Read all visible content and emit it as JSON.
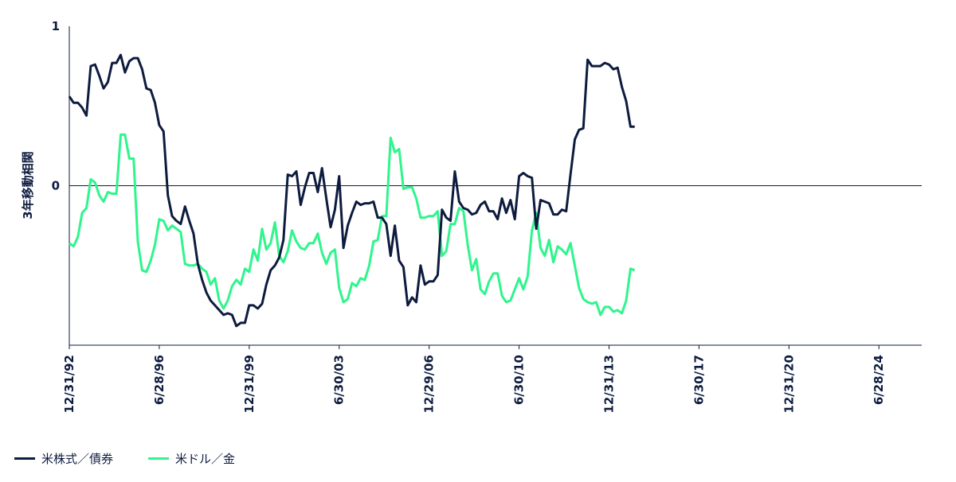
{
  "chart_data": {
    "type": "line",
    "ylabel": "3年移動相関",
    "ylim": [
      -1,
      1
    ],
    "yticks": [
      {
        "value": 1,
        "label": "1"
      },
      {
        "value": 0,
        "label": "0"
      }
    ],
    "xlim": [
      0,
      199
    ],
    "xticks": [
      {
        "index": 0,
        "label": "12/31/92"
      },
      {
        "index": 21,
        "label": "6/28/96"
      },
      {
        "index": 42,
        "label": "12/31/99"
      },
      {
        "index": 63,
        "label": "6/30/03"
      },
      {
        "index": 84,
        "label": "12/29/06"
      },
      {
        "index": 105,
        "label": "6/30/10"
      },
      {
        "index": 126,
        "label": "12/31/13"
      },
      {
        "index": 147,
        "label": "6/30/17"
      },
      {
        "index": 168,
        "label": "12/31/20"
      },
      {
        "index": 189,
        "label": "6/28/24"
      }
    ],
    "series": [
      {
        "name": "米株式／債券",
        "color": "#0d1b3e",
        "points": [
          [
            0,
            0.56
          ],
          [
            1,
            0.52
          ],
          [
            2,
            0.52
          ],
          [
            3,
            0.49
          ],
          [
            4,
            0.44
          ],
          [
            5,
            0.75
          ],
          [
            6,
            0.76
          ],
          [
            7,
            0.69
          ],
          [
            8,
            0.61
          ],
          [
            9,
            0.65
          ],
          [
            10,
            0.77
          ],
          [
            11,
            0.77
          ],
          [
            12,
            0.82
          ],
          [
            13,
            0.71
          ],
          [
            14,
            0.78
          ],
          [
            15,
            0.8
          ],
          [
            16,
            0.8
          ],
          [
            17,
            0.73
          ],
          [
            18,
            0.61
          ],
          [
            19,
            0.6
          ],
          [
            20,
            0.52
          ],
          [
            21,
            0.38
          ],
          [
            22,
            0.34
          ],
          [
            23,
            -0.06
          ],
          [
            24,
            -0.19
          ],
          [
            25,
            -0.22
          ],
          [
            26,
            -0.24
          ],
          [
            27,
            -0.13
          ],
          [
            28,
            -0.22
          ],
          [
            29,
            -0.3
          ],
          [
            30,
            -0.49
          ],
          [
            31,
            -0.59
          ],
          [
            32,
            -0.67
          ],
          [
            33,
            -0.72
          ],
          [
            34,
            -0.75
          ],
          [
            35,
            -0.78
          ],
          [
            36,
            -0.81
          ],
          [
            37,
            -0.8
          ],
          [
            38,
            -0.81
          ],
          [
            39,
            -0.88
          ],
          [
            40,
            -0.86
          ],
          [
            41,
            -0.86
          ],
          [
            42,
            -0.75
          ],
          [
            43,
            -0.75
          ],
          [
            44,
            -0.77
          ],
          [
            45,
            -0.74
          ],
          [
            46,
            -0.62
          ],
          [
            47,
            -0.53
          ],
          [
            48,
            -0.5
          ],
          [
            49,
            -0.45
          ],
          [
            50,
            -0.34
          ],
          [
            51,
            0.07
          ],
          [
            52,
            0.06
          ],
          [
            53,
            0.09
          ],
          [
            54,
            -0.12
          ],
          [
            55,
            -0.01
          ],
          [
            56,
            0.08
          ],
          [
            57,
            0.08
          ],
          [
            58,
            -0.04
          ],
          [
            59,
            0.11
          ],
          [
            60,
            -0.08
          ],
          [
            61,
            -0.26
          ],
          [
            62,
            -0.15
          ],
          [
            63,
            0.06
          ],
          [
            64,
            -0.39
          ],
          [
            65,
            -0.25
          ],
          [
            66,
            -0.17
          ],
          [
            67,
            -0.1
          ],
          [
            68,
            -0.12
          ],
          [
            69,
            -0.11
          ],
          [
            70,
            -0.11
          ],
          [
            71,
            -0.1
          ],
          [
            72,
            -0.2
          ],
          [
            73,
            -0.2
          ],
          [
            74,
            -0.24
          ],
          [
            75,
            -0.44
          ],
          [
            76,
            -0.25
          ],
          [
            77,
            -0.47
          ],
          [
            78,
            -0.51
          ],
          [
            79,
            -0.75
          ],
          [
            80,
            -0.7
          ],
          [
            81,
            -0.73
          ],
          [
            82,
            -0.5
          ],
          [
            83,
            -0.62
          ],
          [
            84,
            -0.6
          ],
          [
            85,
            -0.6
          ],
          [
            86,
            -0.56
          ],
          [
            87,
            -0.15
          ],
          [
            88,
            -0.2
          ],
          [
            89,
            -0.22
          ],
          [
            90,
            0.09
          ],
          [
            91,
            -0.1
          ],
          [
            92,
            -0.14
          ],
          [
            93,
            -0.15
          ],
          [
            94,
            -0.18
          ],
          [
            95,
            -0.17
          ],
          [
            96,
            -0.12
          ],
          [
            97,
            -0.1
          ],
          [
            98,
            -0.16
          ],
          [
            99,
            -0.16
          ],
          [
            100,
            -0.21
          ],
          [
            101,
            -0.08
          ],
          [
            102,
            -0.17
          ],
          [
            103,
            -0.09
          ],
          [
            104,
            -0.21
          ],
          [
            105,
            0.06
          ],
          [
            106,
            0.08
          ],
          [
            107,
            0.06
          ],
          [
            108,
            0.05
          ],
          [
            109,
            -0.27
          ],
          [
            110,
            -0.09
          ],
          [
            111,
            -0.1
          ],
          [
            112,
            -0.11
          ],
          [
            113,
            -0.18
          ],
          [
            114,
            -0.18
          ],
          [
            115,
            -0.15
          ],
          [
            116,
            -0.16
          ],
          [
            117,
            0.07
          ],
          [
            118,
            0.29
          ],
          [
            119,
            0.35
          ],
          [
            120,
            0.36
          ],
          [
            121,
            0.79
          ],
          [
            122,
            0.75
          ],
          [
            123,
            0.75
          ],
          [
            124,
            0.75
          ],
          [
            125,
            0.77
          ],
          [
            126,
            0.76
          ],
          [
            127,
            0.73
          ],
          [
            128,
            0.74
          ],
          [
            129,
            0.62
          ],
          [
            130,
            0.53
          ],
          [
            131,
            0.37
          ],
          [
            132,
            0.37
          ]
        ]
      },
      {
        "name": "米ドル／金",
        "color": "#2ef58c",
        "points": [
          [
            0,
            -0.36
          ],
          [
            1,
            -0.38
          ],
          [
            2,
            -0.32
          ],
          [
            3,
            -0.17
          ],
          [
            4,
            -0.14
          ],
          [
            5,
            0.04
          ],
          [
            6,
            0.02
          ],
          [
            7,
            -0.06
          ],
          [
            8,
            -0.1
          ],
          [
            9,
            -0.04
          ],
          [
            10,
            -0.05
          ],
          [
            11,
            -0.05
          ],
          [
            12,
            0.32
          ],
          [
            13,
            0.32
          ],
          [
            14,
            0.17
          ],
          [
            15,
            0.17
          ],
          [
            16,
            -0.35
          ],
          [
            17,
            -0.53
          ],
          [
            18,
            -0.54
          ],
          [
            19,
            -0.47
          ],
          [
            20,
            -0.37
          ],
          [
            21,
            -0.21
          ],
          [
            22,
            -0.22
          ],
          [
            23,
            -0.28
          ],
          [
            24,
            -0.25
          ],
          [
            25,
            -0.27
          ],
          [
            26,
            -0.29
          ],
          [
            27,
            -0.49
          ],
          [
            28,
            -0.5
          ],
          [
            29,
            -0.5
          ],
          [
            30,
            -0.49
          ],
          [
            31,
            -0.52
          ],
          [
            32,
            -0.54
          ],
          [
            33,
            -0.62
          ],
          [
            34,
            -0.58
          ],
          [
            35,
            -0.72
          ],
          [
            36,
            -0.77
          ],
          [
            37,
            -0.72
          ],
          [
            38,
            -0.63
          ],
          [
            39,
            -0.59
          ],
          [
            40,
            -0.62
          ],
          [
            41,
            -0.52
          ],
          [
            42,
            -0.54
          ],
          [
            43,
            -0.4
          ],
          [
            44,
            -0.47
          ],
          [
            45,
            -0.27
          ],
          [
            46,
            -0.4
          ],
          [
            47,
            -0.36
          ],
          [
            48,
            -0.23
          ],
          [
            49,
            -0.44
          ],
          [
            50,
            -0.48
          ],
          [
            51,
            -0.41
          ],
          [
            52,
            -0.28
          ],
          [
            53,
            -0.35
          ],
          [
            54,
            -0.39
          ],
          [
            55,
            -0.4
          ],
          [
            56,
            -0.36
          ],
          [
            57,
            -0.36
          ],
          [
            58,
            -0.3
          ],
          [
            59,
            -0.42
          ],
          [
            60,
            -0.49
          ],
          [
            61,
            -0.42
          ],
          [
            62,
            -0.4
          ],
          [
            63,
            -0.64
          ],
          [
            64,
            -0.73
          ],
          [
            65,
            -0.71
          ],
          [
            66,
            -0.61
          ],
          [
            67,
            -0.63
          ],
          [
            68,
            -0.58
          ],
          [
            69,
            -0.59
          ],
          [
            70,
            -0.5
          ],
          [
            71,
            -0.35
          ],
          [
            72,
            -0.34
          ],
          [
            73,
            -0.19
          ],
          [
            74,
            -0.19
          ],
          [
            75,
            0.3
          ],
          [
            76,
            0.21
          ],
          [
            77,
            0.23
          ],
          [
            78,
            -0.02
          ],
          [
            79,
            -0.01
          ],
          [
            80,
            -0.01
          ],
          [
            81,
            -0.08
          ],
          [
            82,
            -0.2
          ],
          [
            83,
            -0.2
          ],
          [
            84,
            -0.19
          ],
          [
            85,
            -0.19
          ],
          [
            86,
            -0.16
          ],
          [
            87,
            -0.44
          ],
          [
            88,
            -0.41
          ],
          [
            89,
            -0.24
          ],
          [
            90,
            -0.24
          ],
          [
            91,
            -0.14
          ],
          [
            92,
            -0.16
          ],
          [
            93,
            -0.37
          ],
          [
            94,
            -0.53
          ],
          [
            95,
            -0.46
          ],
          [
            96,
            -0.65
          ],
          [
            97,
            -0.68
          ],
          [
            98,
            -0.6
          ],
          [
            99,
            -0.55
          ],
          [
            100,
            -0.55
          ],
          [
            101,
            -0.69
          ],
          [
            102,
            -0.73
          ],
          [
            103,
            -0.72
          ],
          [
            104,
            -0.65
          ],
          [
            105,
            -0.58
          ],
          [
            106,
            -0.65
          ],
          [
            107,
            -0.57
          ],
          [
            108,
            -0.28
          ],
          [
            109,
            -0.17
          ],
          [
            110,
            -0.39
          ],
          [
            111,
            -0.44
          ],
          [
            112,
            -0.34
          ],
          [
            113,
            -0.48
          ],
          [
            114,
            -0.38
          ],
          [
            115,
            -0.4
          ],
          [
            116,
            -0.43
          ],
          [
            117,
            -0.36
          ],
          [
            118,
            -0.5
          ],
          [
            119,
            -0.64
          ],
          [
            120,
            -0.71
          ],
          [
            121,
            -0.73
          ],
          [
            122,
            -0.74
          ],
          [
            123,
            -0.73
          ],
          [
            124,
            -0.81
          ],
          [
            125,
            -0.76
          ],
          [
            126,
            -0.76
          ],
          [
            127,
            -0.79
          ],
          [
            128,
            -0.78
          ],
          [
            129,
            -0.8
          ],
          [
            130,
            -0.72
          ],
          [
            131,
            -0.52
          ],
          [
            132,
            -0.53
          ]
        ]
      }
    ]
  },
  "legend": {
    "items": [
      {
        "label": "米株式／債券",
        "color": "#0d1b3e"
      },
      {
        "label": "米ドル／金",
        "color": "#2ef58c"
      }
    ]
  }
}
